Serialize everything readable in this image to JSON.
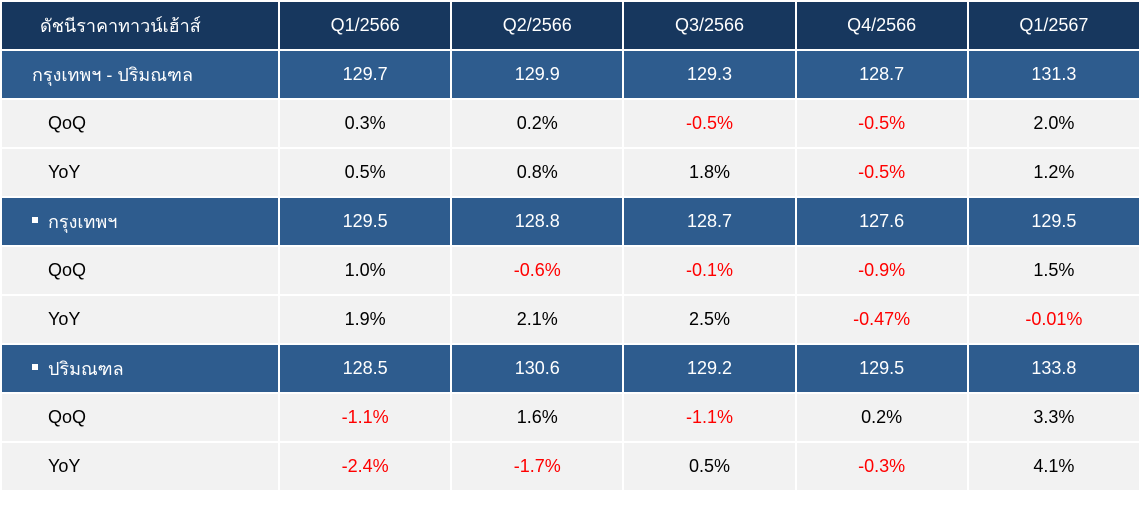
{
  "header": {
    "label": "ดัชนีราคาทาวน์เฮ้าส์",
    "quarters": [
      "Q1/2566",
      "Q2/2566",
      "Q3/2566",
      "Q4/2566",
      "Q1/2567"
    ]
  },
  "sections": [
    {
      "label": "กรุงเทพฯ - ปริมณฑล",
      "bullet": false,
      "values": [
        "129.7",
        "129.9",
        "129.3",
        "128.7",
        "131.3"
      ],
      "qoq": [
        "0.3%",
        "0.2%",
        "-0.5%",
        "-0.5%",
        "2.0%"
      ],
      "yoy": [
        "0.5%",
        "0.8%",
        "1.8%",
        "-0.5%",
        "1.2%"
      ]
    },
    {
      "label": "กรุงเทพฯ",
      "bullet": true,
      "values": [
        "129.5",
        "128.8",
        "128.7",
        "127.6",
        "129.5"
      ],
      "qoq": [
        "1.0%",
        "-0.6%",
        "-0.1%",
        "-0.9%",
        "1.5%"
      ],
      "yoy": [
        "1.9%",
        "2.1%",
        "2.5%",
        "-0.47%",
        "-0.01%"
      ]
    },
    {
      "label": "ปริมณฑล",
      "bullet": true,
      "values": [
        "128.5",
        "130.6",
        "129.2",
        "129.5",
        "133.8"
      ],
      "qoq": [
        "-1.1%",
        "1.6%",
        "-1.1%",
        "0.2%",
        "3.3%"
      ],
      "yoy": [
        "-2.4%",
        "-1.7%",
        "0.5%",
        "-0.3%",
        "4.1%"
      ]
    }
  ],
  "row_labels": {
    "qoq": "QoQ",
    "yoy": "YoY"
  },
  "colors": {
    "header": "#17375e",
    "section": "#2e5c8e",
    "sub": "#f2f2f2",
    "negative": "#ff0000"
  }
}
